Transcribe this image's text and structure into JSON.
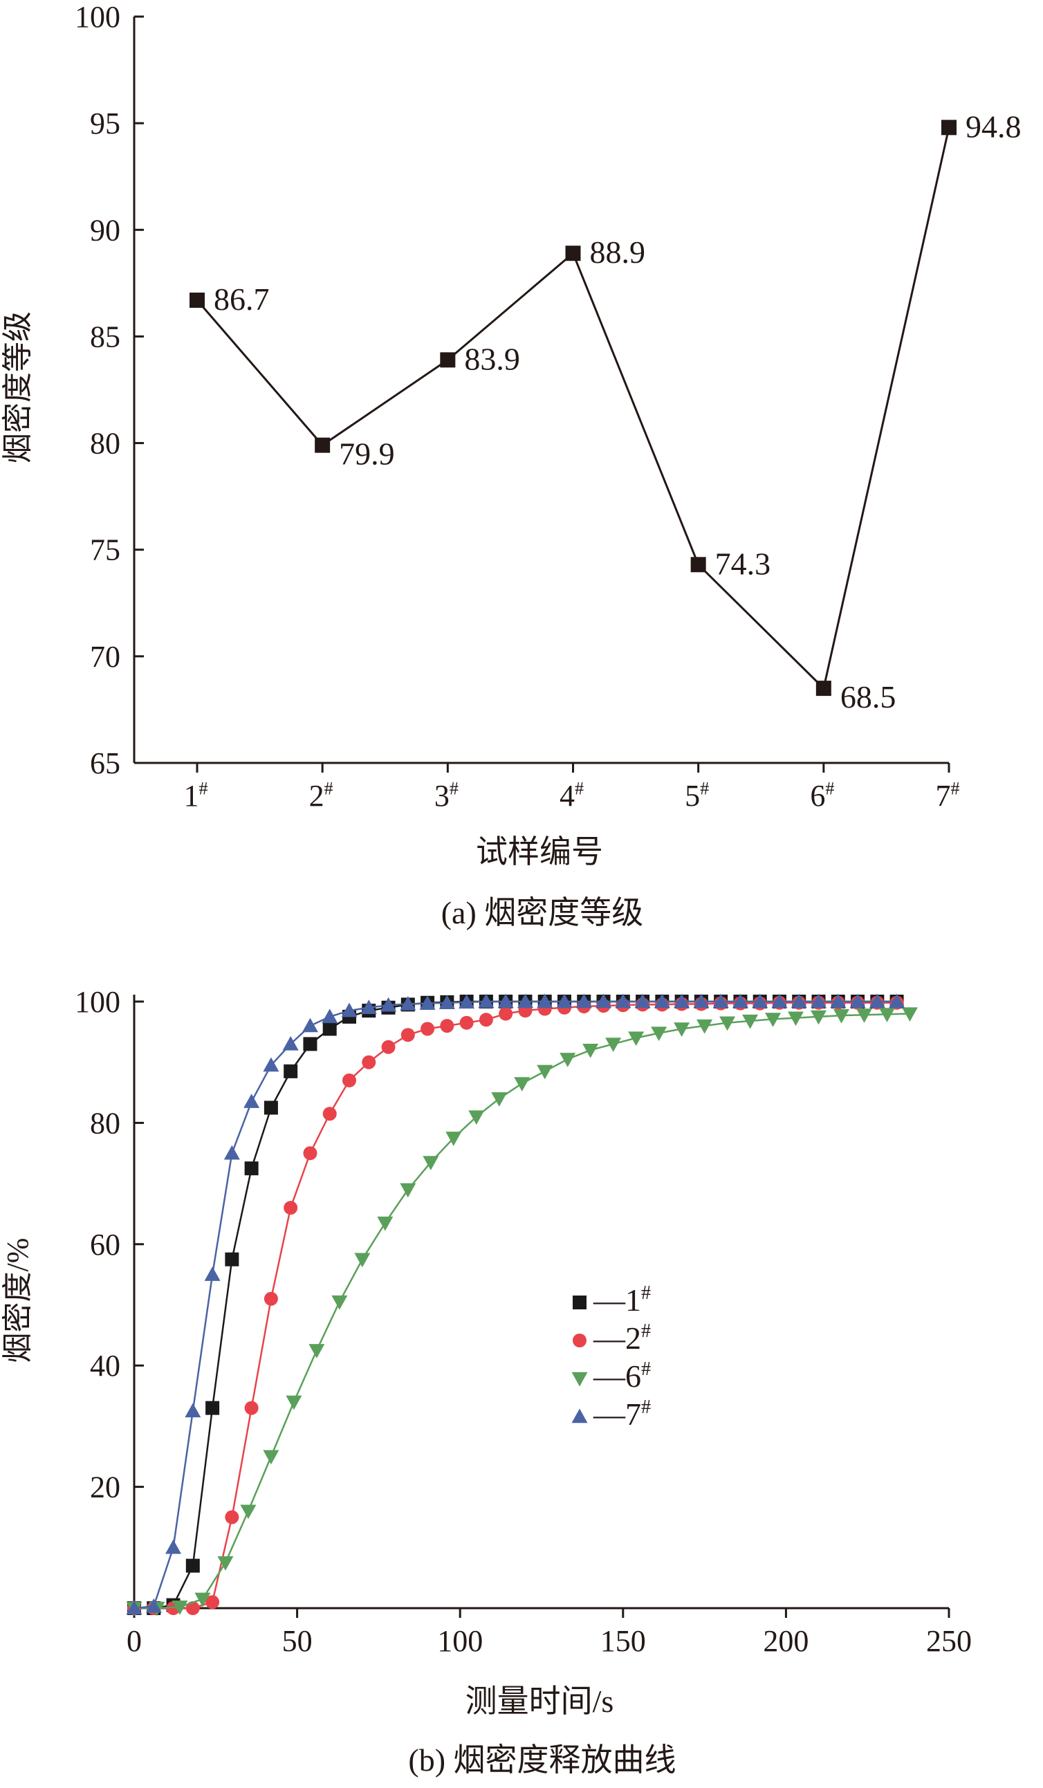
{
  "chart_data": [
    {
      "type": "line",
      "xlabel": "试样编号",
      "ylabel": "烟密度等级",
      "caption": "(a) 烟密度等级",
      "ylim": [
        65,
        100
      ],
      "yticks": [
        "65",
        "70",
        "75",
        "80",
        "85",
        "90",
        "95",
        "100"
      ],
      "categories": [
        "1",
        "2",
        "3",
        "4",
        "5",
        "6",
        "7"
      ],
      "category_mark": "#",
      "values": [
        86.7,
        79.9,
        83.9,
        88.9,
        74.3,
        68.5,
        94.8
      ],
      "data_labels": [
        "86.7",
        "79.9",
        "83.9",
        "88.9",
        "74.3",
        "68.5",
        "94.8"
      ],
      "marker": "square",
      "grid": false
    },
    {
      "type": "line",
      "xlabel": "测量时间/s",
      "ylabel": "烟密度/%",
      "caption": "(b) 烟密度释放曲线",
      "xlim": [
        0,
        250
      ],
      "ylim": [
        0,
        100
      ],
      "xticks": [
        "0",
        "50",
        "100",
        "150",
        "200",
        "250"
      ],
      "yticks": [
        "20",
        "40",
        "60",
        "80",
        "100"
      ],
      "legend_position": "center-right",
      "grid": false,
      "series": [
        {
          "name": "1",
          "mark": "#",
          "legend_prefix": "—",
          "marker": "square",
          "color": "#1a1a1a",
          "x": [
            0,
            6,
            12,
            18,
            24,
            30,
            36,
            42,
            48,
            54,
            60,
            66,
            72,
            78,
            84,
            90,
            96,
            102,
            108,
            114,
            120,
            126,
            132,
            138,
            144,
            150,
            156,
            162,
            168,
            174,
            180,
            186,
            192,
            198,
            204,
            210,
            216,
            222,
            228,
            234
          ],
          "y": [
            0,
            0,
            0.5,
            7,
            33,
            57.5,
            72.5,
            82.5,
            88.5,
            93,
            95.5,
            97.5,
            98.5,
            99,
            99.5,
            99.8,
            99.9,
            100,
            100,
            100,
            100,
            100,
            100,
            100,
            100,
            100,
            100,
            100,
            100,
            100,
            100,
            100,
            100,
            100,
            100,
            100,
            100,
            100,
            100,
            100
          ]
        },
        {
          "name": "2",
          "mark": "#",
          "legend_prefix": "—",
          "marker": "circle",
          "color": "#e8434a",
          "x": [
            0,
            6,
            12,
            18,
            24,
            30,
            36,
            42,
            48,
            54,
            60,
            66,
            72,
            78,
            84,
            90,
            96,
            102,
            108,
            114,
            120,
            126,
            132,
            138,
            144,
            150,
            156,
            162,
            168,
            174,
            180,
            186,
            192,
            198,
            204,
            210,
            216,
            222,
            228,
            234
          ],
          "y": [
            0,
            0,
            0,
            0,
            1,
            15,
            33,
            51,
            66,
            75,
            81.5,
            87,
            90,
            92.5,
            94.5,
            95.5,
            96,
            96.5,
            97,
            98,
            98.5,
            98.8,
            99,
            99.2,
            99.3,
            99.4,
            99.5,
            99.5,
            99.6,
            99.6,
            99.7,
            99.7,
            99.7,
            99.8,
            99.8,
            99.8,
            99.8,
            99.8,
            99.8,
            99.8
          ]
        },
        {
          "name": "6",
          "mark": "#",
          "legend_prefix": "—",
          "marker": "triangle-down",
          "color": "#5aa05a",
          "x": [
            0,
            7,
            14,
            21,
            28,
            35,
            42,
            49,
            56,
            63,
            70,
            77,
            84,
            91,
            98,
            105,
            112,
            119,
            126,
            133,
            140,
            147,
            154,
            161,
            168,
            175,
            182,
            189,
            196,
            203,
            210,
            217,
            224,
            231,
            238
          ],
          "y": [
            0,
            0,
            0.2,
            1.5,
            7.5,
            16,
            25,
            34,
            42.5,
            50.5,
            57.5,
            63.5,
            69,
            73.5,
            77.5,
            81,
            84,
            86.5,
            88.5,
            90.5,
            92,
            93,
            94,
            94.8,
            95.5,
            96,
            96.5,
            96.8,
            97.1,
            97.3,
            97.5,
            97.7,
            97.8,
            97.9,
            98
          ]
        },
        {
          "name": "7",
          "mark": "#",
          "legend_prefix": "—",
          "marker": "triangle-up",
          "color": "#4a63a4",
          "x": [
            0,
            6,
            12,
            18,
            24,
            30,
            36,
            42,
            48,
            54,
            60,
            66,
            72,
            78,
            84,
            90,
            96,
            102,
            108,
            114,
            120,
            126,
            132,
            138,
            144,
            150,
            156,
            162,
            168,
            174,
            180,
            186,
            192,
            198,
            204,
            210,
            216,
            222,
            228,
            234
          ],
          "y": [
            0,
            0.3,
            10,
            32.5,
            55,
            75,
            83.5,
            89.5,
            93,
            96,
            97.5,
            98.5,
            99,
            99.4,
            99.6,
            99.7,
            99.8,
            99.9,
            100,
            100,
            100,
            100,
            100,
            100,
            100,
            100,
            100,
            100,
            100,
            100,
            100,
            100,
            100,
            100,
            100,
            100,
            100,
            100,
            100,
            100
          ]
        }
      ]
    }
  ]
}
